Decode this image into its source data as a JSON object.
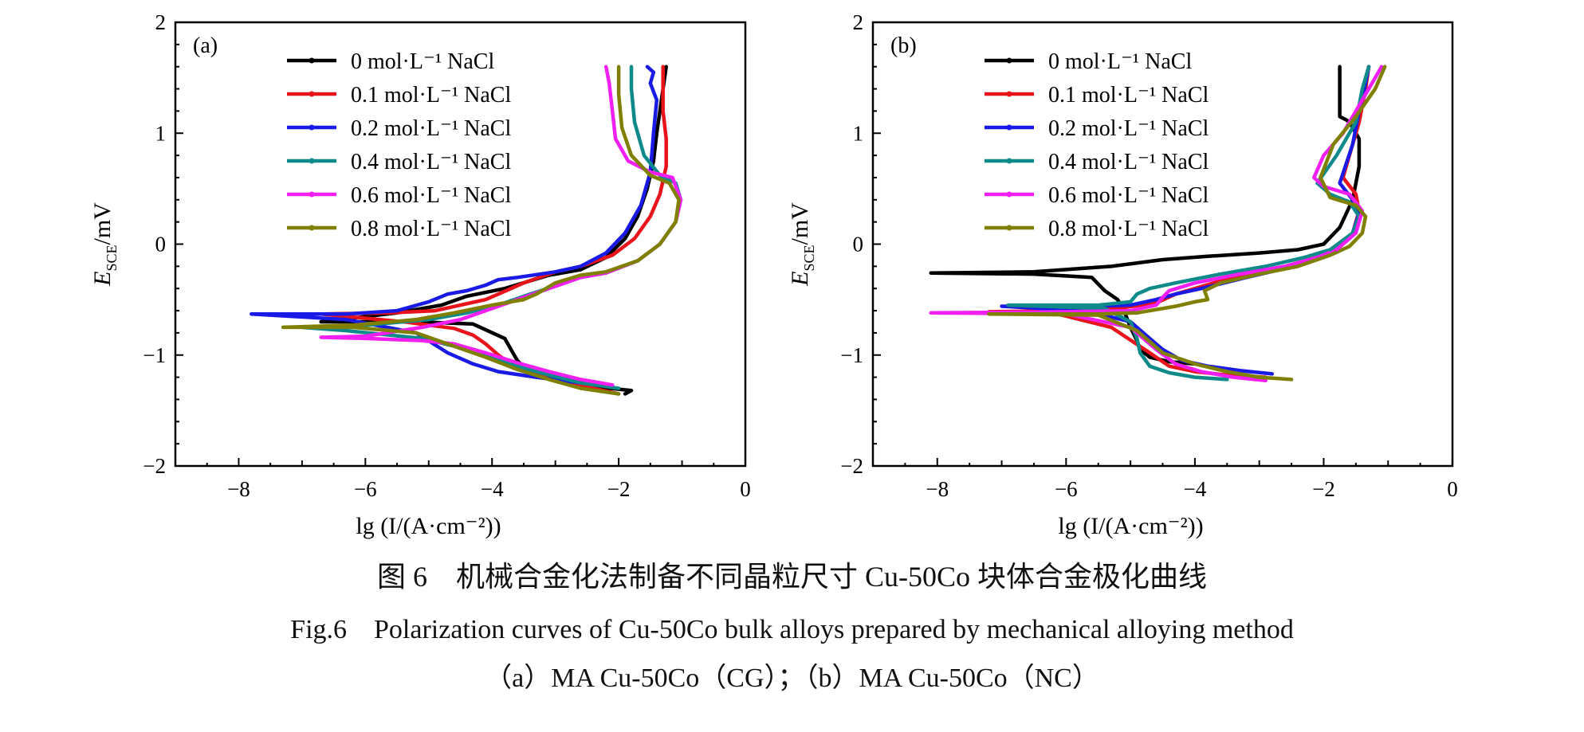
{
  "figure": {
    "caption_zh": "图 6　机械合金化法制备不同晶粒尺寸 Cu-50Co 块体合金极化曲线",
    "caption_en": "Fig.6　Polarization curves of Cu-50Co bulk alloys prepared by mechanical alloying method",
    "caption_sub": "（a）MA Cu-50Co（CG）；（b）MA Cu-50Co（NC）"
  },
  "colors": {
    "0 mol·L⁻¹ NaCl": "#000000",
    "0.1 mol·L⁻¹ NaCl": "#e8131b",
    "0.2 mol·L⁻¹ NaCl": "#1a1ae6",
    "0.4 mol·L⁻¹ NaCl": "#0f8a8a",
    "0.6 mol·L⁻¹ NaCl": "#f21ff2",
    "0.8 mol·L⁻¹ NaCl": "#808000"
  },
  "chart_data": [
    {
      "type": "line",
      "panel_label": "(a)",
      "xlabel": "lg (I/(A·cm⁻²))",
      "ylabel": "E_SCE/mV",
      "xlim": [
        -9,
        0
      ],
      "ylim": [
        -2,
        2
      ],
      "xticks": [
        -8,
        -6,
        -4,
        -2,
        0
      ],
      "yticks": [
        -2,
        -1,
        0,
        1,
        2
      ],
      "legend_position": "top-left",
      "series": [
        {
          "name": "0 mol·L⁻¹ NaCl",
          "x": [
            -1.9,
            -1.8,
            -2.5,
            -2.9,
            -3.4,
            -3.6,
            -3.8,
            -4.3,
            -5.2,
            -6.7,
            -5.5,
            -4.8,
            -4.4,
            -3.8,
            -3.1,
            -2.6
          ],
          "y": [
            -1.35,
            -1.32,
            -1.28,
            -1.23,
            -1.16,
            -1.05,
            -0.85,
            -0.72,
            -0.7,
            -0.7,
            -0.62,
            -0.55,
            -0.47,
            -0.4,
            -0.28,
            -0.23
          ]
        },
        {
          "name": "0.1 mol·L⁻¹ NaCl",
          "x": [
            -2.0,
            -2.4,
            -3.0,
            -3.6,
            -3.9,
            -4.1,
            -4.3,
            -4.6,
            -5.4,
            -6.7,
            -5.6,
            -4.9,
            -4.5,
            -4.1,
            -3.9,
            -3.5,
            -3.0,
            -2.6
          ],
          "y": [
            -1.35,
            -1.3,
            -1.22,
            -1.12,
            -1.0,
            -0.9,
            -0.82,
            -0.76,
            -0.7,
            -0.63,
            -0.62,
            -0.6,
            -0.55,
            -0.5,
            -0.45,
            -0.35,
            -0.25,
            -0.2
          ]
        },
        {
          "name": "0.2 mol·L⁻¹ NaCl",
          "x": [
            -2.1,
            -2.6,
            -3.3,
            -3.9,
            -4.3,
            -4.7,
            -5.2,
            -6.3,
            -7.8,
            -6.3,
            -5.5,
            -5.0,
            -4.7,
            -4.4,
            -4.1,
            -3.9,
            -3.6,
            -3.0,
            -2.6
          ],
          "y": [
            -1.28,
            -1.25,
            -1.2,
            -1.15,
            -1.08,
            -0.98,
            -0.8,
            -0.68,
            -0.63,
            -0.63,
            -0.6,
            -0.52,
            -0.45,
            -0.42,
            -0.37,
            -0.32,
            -0.3,
            -0.25,
            -0.2
          ]
        },
        {
          "name": "0.4 mol·L⁻¹ NaCl",
          "x": [
            -2.0,
            -2.6,
            -3.1,
            -3.6,
            -4.1,
            -4.6,
            -5.1,
            -6.3,
            -7.0,
            -6.0,
            -5.0,
            -4.4,
            -3.9,
            -3.4,
            -3.0,
            -2.6,
            -2.2
          ],
          "y": [
            -1.3,
            -1.25,
            -1.18,
            -1.1,
            -1.0,
            -0.92,
            -0.85,
            -0.78,
            -0.75,
            -0.73,
            -0.68,
            -0.62,
            -0.55,
            -0.45,
            -0.38,
            -0.3,
            -0.26
          ]
        },
        {
          "name": "0.6 mol·L⁻¹ NaCl",
          "x": [
            -2.1,
            -2.6,
            -3.1,
            -3.6,
            -4.1,
            -4.6,
            -5.1,
            -6.0,
            -6.7,
            -6.0,
            -5.1,
            -4.5,
            -4.0,
            -3.5,
            -3.0,
            -2.6,
            -2.2
          ],
          "y": [
            -1.27,
            -1.22,
            -1.15,
            -1.07,
            -0.98,
            -0.9,
            -0.87,
            -0.85,
            -0.84,
            -0.83,
            -0.75,
            -0.68,
            -0.58,
            -0.48,
            -0.38,
            -0.3,
            -0.26
          ]
        },
        {
          "name": "0.8 mol·L⁻¹ NaCl",
          "x": [
            -2.0,
            -2.6,
            -3.1,
            -3.6,
            -4.1,
            -4.6,
            -5.2,
            -6.2,
            -7.3,
            -6.2,
            -5.2,
            -4.6,
            -4.0,
            -3.5,
            -3.3,
            -3.0,
            -2.6,
            -2.2
          ],
          "y": [
            -1.35,
            -1.3,
            -1.22,
            -1.13,
            -1.02,
            -0.92,
            -0.8,
            -0.75,
            -0.75,
            -0.73,
            -0.68,
            -0.62,
            -0.55,
            -0.5,
            -0.45,
            -0.35,
            -0.28,
            -0.25
          ]
        }
      ],
      "anodic": [
        {
          "name": "0 mol·L⁻¹ NaCl",
          "x": [
            -2.6,
            -2.2,
            -1.9,
            -1.7,
            -1.55,
            -1.45,
            -1.4,
            -1.35,
            -1.3,
            -1.25
          ],
          "y": [
            -0.23,
            -0.12,
            0.05,
            0.25,
            0.5,
            0.75,
            1.0,
            1.2,
            1.4,
            1.6
          ]
        },
        {
          "name": "0.1 mol·L⁻¹ NaCl",
          "x": [
            -2.6,
            -2.1,
            -1.75,
            -1.5,
            -1.35,
            -1.25,
            -1.25,
            -1.3,
            -1.3
          ],
          "y": [
            -0.2,
            -0.1,
            0.05,
            0.25,
            0.45,
            0.7,
            0.95,
            1.2,
            1.6
          ]
        },
        {
          "name": "0.2 mol·L⁻¹ NaCl",
          "x": [
            -2.6,
            -2.2,
            -1.9,
            -1.65,
            -1.5,
            -1.45,
            -1.4,
            -1.5,
            -1.45,
            -1.55
          ],
          "y": [
            -0.2,
            -0.08,
            0.1,
            0.35,
            0.65,
            1.0,
            1.3,
            1.45,
            1.55,
            1.6
          ]
        },
        {
          "name": "0.4 mol·L⁻¹ NaCl",
          "x": [
            -2.2,
            -1.7,
            -1.35,
            -1.1,
            -1.02,
            -1.1,
            -1.35,
            -1.6,
            -1.75,
            -1.8,
            -1.8
          ],
          "y": [
            -0.26,
            -0.15,
            0.0,
            0.2,
            0.4,
            0.55,
            0.62,
            0.8,
            1.1,
            1.4,
            1.6
          ]
        },
        {
          "name": "0.6 mol·L⁻¹ NaCl",
          "x": [
            -2.2,
            -1.7,
            -1.35,
            -1.1,
            -1.02,
            -1.15,
            -1.5,
            -1.85,
            -2.05,
            -2.1,
            -2.15,
            -2.2
          ],
          "y": [
            -0.26,
            -0.15,
            0.0,
            0.2,
            0.4,
            0.6,
            0.65,
            0.75,
            0.95,
            1.2,
            1.45,
            1.6
          ]
        },
        {
          "name": "0.8 mol·L⁻¹ NaCl",
          "x": [
            -2.2,
            -1.7,
            -1.35,
            -1.1,
            -1.05,
            -1.2,
            -1.5,
            -1.8,
            -1.95,
            -2.0,
            -2.0
          ],
          "y": [
            -0.25,
            -0.15,
            0.0,
            0.2,
            0.4,
            0.55,
            0.62,
            0.8,
            1.05,
            1.35,
            1.6
          ]
        }
      ]
    },
    {
      "type": "line",
      "panel_label": "(b)",
      "xlabel": "lg (I/(A·cm⁻²))",
      "ylabel": "E_SCE/mV",
      "xlim": [
        -9,
        0
      ],
      "ylim": [
        -2,
        2
      ],
      "xticks": [
        -8,
        -6,
        -4,
        -2,
        0
      ],
      "yticks": [
        -2,
        -1,
        0,
        1,
        2
      ],
      "legend_position": "top-left",
      "series": [
        {
          "name": "0 mol·L⁻¹ NaCl",
          "x": [
            -4.0,
            -4.4,
            -4.7,
            -4.85,
            -4.9,
            -5.0,
            -5.1,
            -5.2,
            -5.4,
            -5.6,
            -6.5,
            -8.1,
            -6.5,
            -5.3,
            -4.5,
            -3.8,
            -3.0,
            -2.4,
            -2.0
          ],
          "y": [
            -1.08,
            -1.06,
            -1.02,
            -0.95,
            -0.87,
            -0.75,
            -0.6,
            -0.5,
            -0.42,
            -0.3,
            -0.27,
            -0.26,
            -0.25,
            -0.2,
            -0.14,
            -0.11,
            -0.08,
            -0.05,
            0.0
          ]
        },
        {
          "name": "0.1 mol·L⁻¹ NaCl",
          "x": [
            -2.9,
            -3.5,
            -4.0,
            -4.4,
            -4.7,
            -5.3,
            -6.2,
            -7.2,
            -6.0,
            -5.2,
            -4.6,
            -4.3,
            -4.0,
            -3.3,
            -2.6,
            -2.1,
            -1.8
          ],
          "y": [
            -1.2,
            -1.18,
            -1.15,
            -1.1,
            -0.98,
            -0.75,
            -0.62,
            -0.61,
            -0.6,
            -0.58,
            -0.53,
            -0.45,
            -0.4,
            -0.28,
            -0.2,
            -0.12,
            -0.05
          ]
        },
        {
          "name": "0.2 mol·L⁻¹ NaCl",
          "x": [
            -2.8,
            -3.3,
            -3.8,
            -4.2,
            -4.5,
            -4.7,
            -5.0,
            -5.7,
            -7.0,
            -5.7,
            -5.0,
            -4.6,
            -4.3,
            -3.9,
            -3.2,
            -2.6,
            -2.1,
            -1.8
          ],
          "y": [
            -1.17,
            -1.14,
            -1.1,
            -1.05,
            -0.95,
            -0.85,
            -0.7,
            -0.6,
            -0.56,
            -0.56,
            -0.55,
            -0.5,
            -0.45,
            -0.4,
            -0.3,
            -0.22,
            -0.12,
            -0.05
          ]
        },
        {
          "name": "0.4 mol·L⁻¹ NaCl",
          "x": [
            -3.5,
            -4.0,
            -4.4,
            -4.7,
            -4.85,
            -4.9,
            -5.0,
            -5.4,
            -6.9,
            -5.5,
            -5.0,
            -4.9,
            -4.7,
            -4.3,
            -3.6,
            -2.9,
            -2.3,
            -1.9
          ],
          "y": [
            -1.22,
            -1.2,
            -1.16,
            -1.1,
            -0.98,
            -0.85,
            -0.7,
            -0.58,
            -0.55,
            -0.55,
            -0.52,
            -0.45,
            -0.4,
            -0.35,
            -0.27,
            -0.2,
            -0.12,
            -0.05
          ]
        },
        {
          "name": "0.6 mol·L⁻¹ NaCl",
          "x": [
            -2.9,
            -3.4,
            -3.9,
            -4.3,
            -4.6,
            -5.0,
            -6.0,
            -8.1,
            -6.0,
            -5.0,
            -4.6,
            -4.5,
            -4.4,
            -4.0,
            -3.3,
            -2.6,
            -2.1,
            -1.8
          ],
          "y": [
            -1.23,
            -1.2,
            -1.15,
            -1.08,
            -0.95,
            -0.75,
            -0.63,
            -0.62,
            -0.61,
            -0.6,
            -0.55,
            -0.48,
            -0.42,
            -0.35,
            -0.27,
            -0.2,
            -0.12,
            -0.05
          ]
        },
        {
          "name": "0.8 mol·L⁻¹ NaCl",
          "x": [
            -2.5,
            -3.0,
            -3.5,
            -4.0,
            -4.5,
            -4.9,
            -5.5,
            -7.2,
            -5.5,
            -4.9,
            -4.3,
            -4.0,
            -3.8,
            -3.85,
            -3.6,
            -3.0,
            -2.4,
            -1.9,
            -1.6
          ],
          "y": [
            -1.22,
            -1.2,
            -1.15,
            -1.08,
            -0.98,
            -0.78,
            -0.64,
            -0.63,
            -0.63,
            -0.62,
            -0.56,
            -0.52,
            -0.5,
            -0.42,
            -0.35,
            -0.27,
            -0.2,
            -0.1,
            -0.02
          ]
        }
      ],
      "anodic": [
        {
          "name": "0 mol·L⁻¹ NaCl",
          "x": [
            -2.0,
            -1.75,
            -1.55,
            -1.45,
            -1.45,
            -1.6,
            -1.65,
            -1.75,
            -1.75
          ],
          "y": [
            0.0,
            0.15,
            0.4,
            0.7,
            0.95,
            1.1,
            1.12,
            1.15,
            1.6
          ]
        },
        {
          "name": "0.1 mol·L⁻¹ NaCl",
          "x": [
            -1.8,
            -1.55,
            -1.45,
            -1.5,
            -1.7,
            -1.55,
            -1.45,
            -1.35,
            -1.3
          ],
          "y": [
            -0.05,
            0.1,
            0.3,
            0.45,
            0.6,
            0.9,
            1.1,
            1.4,
            1.6
          ]
        },
        {
          "name": "0.2 mol·L⁻¹ NaCl",
          "x": [
            -1.8,
            -1.55,
            -1.45,
            -1.55,
            -1.75,
            -1.55,
            -1.45,
            -1.35,
            -1.3
          ],
          "y": [
            -0.05,
            0.1,
            0.28,
            0.4,
            0.55,
            0.9,
            1.2,
            1.45,
            1.6
          ]
        },
        {
          "name": "0.4 mol·L⁻¹ NaCl",
          "x": [
            -1.9,
            -1.55,
            -1.45,
            -1.6,
            -1.9,
            -2.1,
            -1.8,
            -1.5,
            -1.4,
            -1.3
          ],
          "y": [
            -0.05,
            0.1,
            0.25,
            0.38,
            0.45,
            0.55,
            0.8,
            1.1,
            1.4,
            1.6
          ]
        },
        {
          "name": "0.6 mol·L⁻¹ NaCl",
          "x": [
            -1.8,
            -1.5,
            -1.4,
            -1.6,
            -2.0,
            -2.15,
            -2.0,
            -1.7,
            -1.4,
            -1.1
          ],
          "y": [
            -0.05,
            0.1,
            0.3,
            0.45,
            0.52,
            0.6,
            0.8,
            1.0,
            1.3,
            1.6
          ]
        },
        {
          "name": "0.8 mol·L⁻¹ NaCl",
          "x": [
            -1.6,
            -1.4,
            -1.35,
            -1.5,
            -1.9,
            -2.05,
            -1.85,
            -1.5,
            -1.2,
            -1.05
          ],
          "y": [
            -0.02,
            0.1,
            0.25,
            0.35,
            0.42,
            0.6,
            0.9,
            1.15,
            1.4,
            1.6
          ]
        }
      ]
    }
  ]
}
